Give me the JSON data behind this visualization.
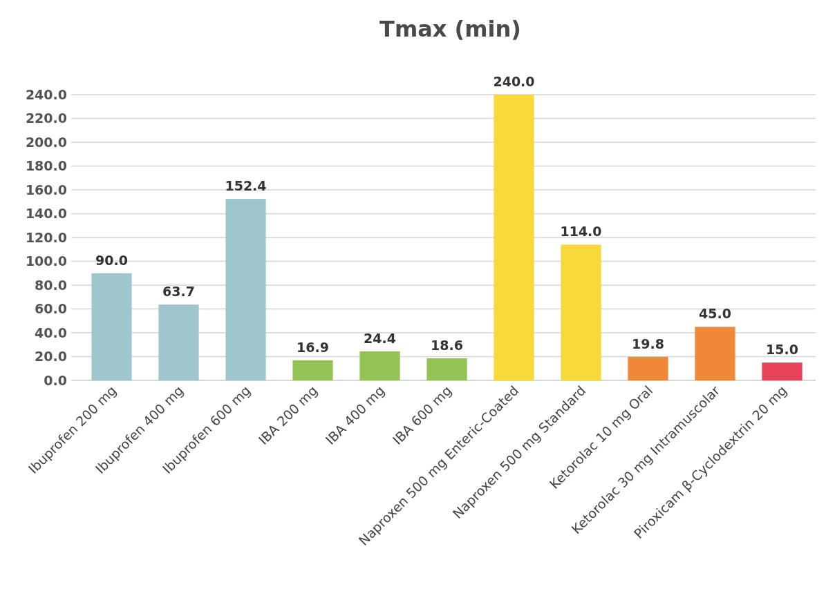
{
  "chart_data": {
    "type": "bar",
    "title": "Tmax (min)",
    "categories": [
      "Ibuprofen 200 mg",
      "Ibuprofen 400 mg",
      "Ibuprofen 600 mg",
      "IBA 200 mg",
      "IBA 400 mg",
      "IBA 600 mg",
      "Naproxen 500 mg Enteric-Coated",
      "Naproxen 500 mg Standard",
      "Ketorolac 10 mg Oral",
      "Ketorolac 30 mg Intramuscolar",
      "Piroxicam β-Cyclodextrin 20 mg"
    ],
    "values": [
      90.0,
      63.7,
      152.4,
      16.9,
      24.4,
      18.6,
      240.0,
      114.0,
      19.8,
      45.0,
      15.0
    ],
    "value_labels": [
      "90.0",
      "63.7",
      "152.4",
      "16.9",
      "24.4",
      "18.6",
      "240.0",
      "114.0",
      "19.8",
      "45.0",
      "15.0"
    ],
    "colors": [
      "#9fc5cd",
      "#9fc5cd",
      "#9fc5cd",
      "#92c353",
      "#92c353",
      "#92c353",
      "#f7d93a",
      "#f7d93a",
      "#f0883a",
      "#f0883a",
      "#e8415a"
    ],
    "ylim": [
      0,
      240
    ],
    "yticks": [
      {
        "value": 0,
        "label": "0.0"
      },
      {
        "value": 20,
        "label": "20.0"
      },
      {
        "value": 40,
        "label": "40.0"
      },
      {
        "value": 60,
        "label": "60.0"
      },
      {
        "value": 80,
        "label": "80.0"
      },
      {
        "value": 100,
        "label": "100.0"
      },
      {
        "value": 120,
        "label": "120.0"
      },
      {
        "value": 140,
        "label": "140.0"
      },
      {
        "value": 160,
        "label": "160.0"
      },
      {
        "value": 180,
        "label": "180.0"
      },
      {
        "value": 200,
        "label": "200.0"
      },
      {
        "value": 220,
        "label": "220.0"
      },
      {
        "value": 240,
        "label": "240.0"
      }
    ],
    "grid": "y"
  }
}
